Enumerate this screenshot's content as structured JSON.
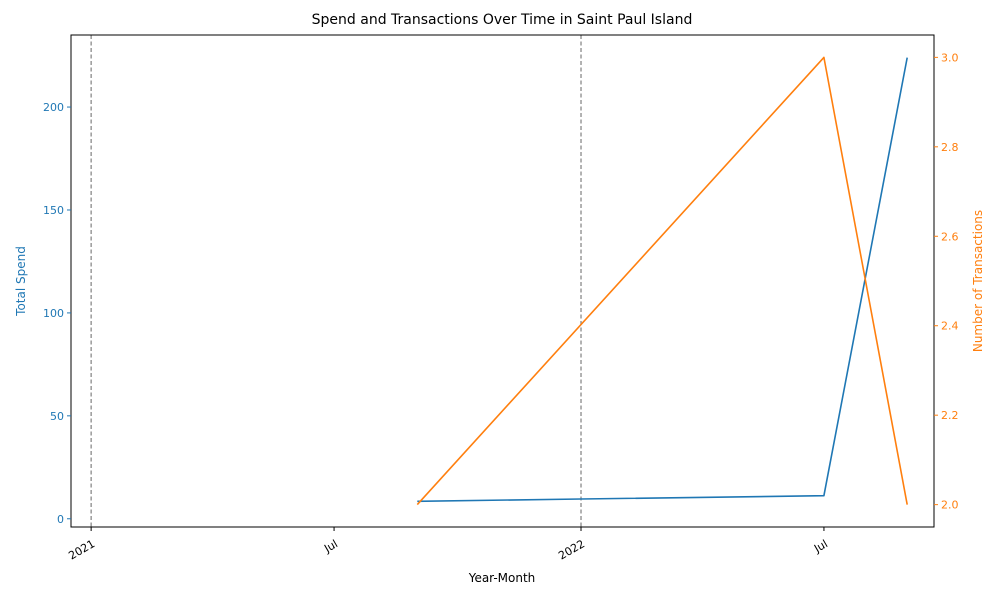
{
  "chart_data": {
    "type": "line",
    "title": "Spend and Transactions Over Time in Saint Paul Island",
    "xlabel": "Year-Month",
    "x_range": [
      "2020-12-17",
      "2022-09-21"
    ],
    "x_ticks": [
      {
        "date": "2021-01-01",
        "label": "2021"
      },
      {
        "date": "2021-07-01",
        "label": "Jul"
      },
      {
        "date": "2022-01-01",
        "label": "2022"
      },
      {
        "date": "2022-07-01",
        "label": "Jul"
      }
    ],
    "year_marker_lines": [
      "2021-01-01",
      "2022-01-01"
    ],
    "y_left": {
      "label": "Total Spend",
      "color": "#1f77b4",
      "ylim": [
        -4,
        235
      ],
      "ticks": [
        0,
        50,
        100,
        150,
        200
      ]
    },
    "y_right": {
      "label": "Number of Transactions",
      "color": "#ff7f0e",
      "ylim": [
        1.95,
        3.05
      ],
      "ticks": [
        2.0,
        2.2,
        2.4,
        2.6,
        2.8,
        3.0
      ],
      "tick_labels": [
        "2.0",
        "2.2",
        "2.4",
        "2.6",
        "2.8",
        "3.0"
      ]
    },
    "series": [
      {
        "name": "Total Spend",
        "axis": "left",
        "color": "#1f77b4",
        "x": [
          "2021-09-01",
          "2022-01-01",
          "2022-07-01",
          "2022-09-01"
        ],
        "values": [
          8.5,
          9.6,
          11.2,
          224
        ]
      },
      {
        "name": "Number of Transactions",
        "axis": "right",
        "color": "#ff7f0e",
        "x": [
          "2021-09-01",
          "2022-07-01",
          "2022-09-01"
        ],
        "values": [
          2,
          3,
          2
        ]
      }
    ],
    "grid": false,
    "legend": "none"
  }
}
